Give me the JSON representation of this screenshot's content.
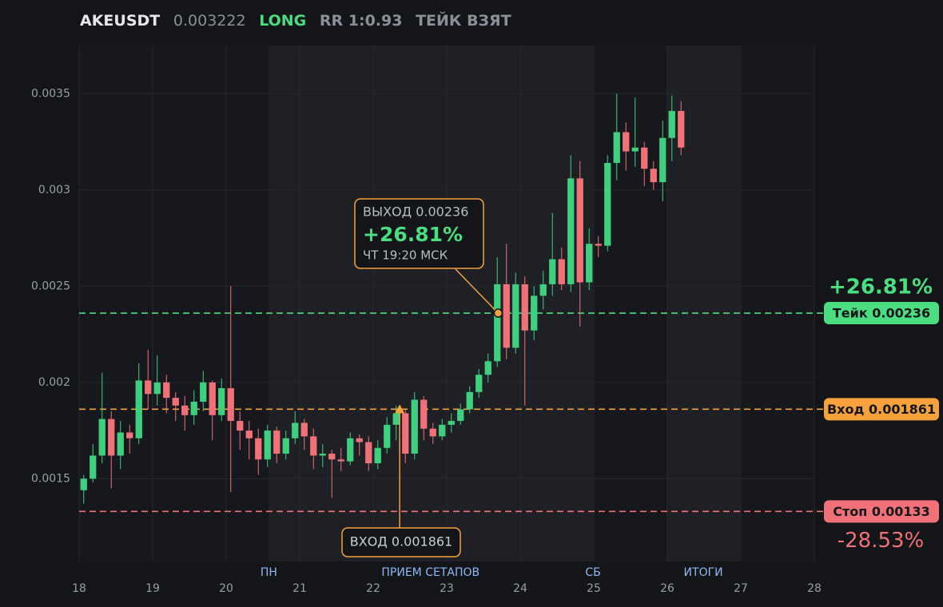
{
  "header": {
    "symbol": "AKEUSDT",
    "price": "0.003222",
    "side": "LONG",
    "rr": "RR 1:0.93",
    "status": "ТЕЙК ВЗЯТ"
  },
  "chart_data": {
    "type": "candlestick",
    "up_color": "#3fd07f",
    "down_color": "#f07178",
    "xlim": [
      18,
      28
    ],
    "xticks": [
      18,
      19,
      20,
      21,
      22,
      23,
      24,
      25,
      26,
      27,
      28
    ],
    "ylim": [
      0.00107,
      0.00375
    ],
    "yticks": [
      0.0015,
      0.002,
      0.0025,
      0.003,
      0.0035
    ],
    "grid": true,
    "x": [
      18.0625,
      18.1875,
      18.3125,
      18.4375,
      18.5625,
      18.6875,
      18.8125,
      18.9375,
      19.0625,
      19.1875,
      19.3125,
      19.4375,
      19.5625,
      19.6875,
      19.8125,
      19.9375,
      20.0625,
      20.1875,
      20.3125,
      20.4375,
      20.5625,
      20.6875,
      20.8125,
      20.9375,
      21.0625,
      21.1875,
      21.3125,
      21.4375,
      21.5625,
      21.6875,
      21.8125,
      21.9375,
      22.0625,
      22.1875,
      22.3125,
      22.4375,
      22.5625,
      22.6875,
      22.8125,
      22.9375,
      23.0625,
      23.1875,
      23.3125,
      23.4375,
      23.5625,
      23.6875,
      23.8125,
      23.9375,
      24.0625,
      24.1875,
      24.3125,
      24.4375,
      24.5625,
      24.6875,
      24.8125,
      24.9375,
      25.0625,
      25.1875,
      25.3125,
      25.4375,
      25.5625,
      25.6875,
      25.8125,
      25.9375,
      26.0625,
      26.1875
    ],
    "open": [
      0.00144,
      0.0015,
      0.00162,
      0.00181,
      0.00162,
      0.00174,
      0.00171,
      0.00201,
      0.00194,
      0.002,
      0.00192,
      0.00188,
      0.00183,
      0.0019,
      0.002,
      0.00183,
      0.00197,
      0.0018,
      0.00175,
      0.00171,
      0.0016,
      0.00175,
      0.00163,
      0.00171,
      0.00179,
      0.00172,
      0.00162,
      0.00163,
      0.0016,
      0.00159,
      0.00171,
      0.00169,
      0.00158,
      0.00166,
      0.00178,
      0.00184,
      0.00163,
      0.00191,
      0.00176,
      0.00172,
      0.00178,
      0.0018,
      0.00186,
      0.00195,
      0.00204,
      0.00211,
      0.00251,
      0.00218,
      0.00251,
      0.00227,
      0.00245,
      0.00251,
      0.00264,
      0.00251,
      0.00306,
      0.00252,
      0.00272,
      0.00271,
      0.00314,
      0.0033,
      0.0032,
      0.00322,
      0.00311,
      0.00304,
      0.00327,
      0.00341
    ],
    "high": [
      0.00152,
      0.00168,
      0.00205,
      0.00185,
      0.0018,
      0.00178,
      0.0021,
      0.00217,
      0.00214,
      0.00204,
      0.00195,
      0.00193,
      0.00196,
      0.00206,
      0.00201,
      0.00202,
      0.0025,
      0.00185,
      0.0018,
      0.00176,
      0.00178,
      0.00177,
      0.00175,
      0.00185,
      0.00181,
      0.00176,
      0.00168,
      0.00165,
      0.00166,
      0.00174,
      0.00173,
      0.00172,
      0.0017,
      0.00182,
      0.00188,
      0.00186,
      0.00195,
      0.00193,
      0.00179,
      0.00181,
      0.00184,
      0.00189,
      0.00198,
      0.00207,
      0.00215,
      0.00265,
      0.00272,
      0.00257,
      0.00255,
      0.0025,
      0.00258,
      0.00288,
      0.0027,
      0.00318,
      0.00315,
      0.0028,
      0.00276,
      0.00318,
      0.0035,
      0.00335,
      0.00348,
      0.00325,
      0.00315,
      0.00336,
      0.00349,
      0.00346
    ],
    "low": [
      0.00137,
      0.00148,
      0.00158,
      0.00145,
      0.00155,
      0.00163,
      0.00168,
      0.00186,
      0.00188,
      0.00184,
      0.0018,
      0.00175,
      0.00178,
      0.00185,
      0.0017,
      0.0018,
      0.00143,
      0.00165,
      0.0016,
      0.00152,
      0.00156,
      0.00158,
      0.0016,
      0.00168,
      0.00165,
      0.00155,
      0.00156,
      0.0014,
      0.00154,
      0.00157,
      0.00162,
      0.00154,
      0.00155,
      0.00163,
      0.0017,
      0.00158,
      0.0016,
      0.0017,
      0.00168,
      0.0017,
      0.00174,
      0.00178,
      0.00184,
      0.00192,
      0.002,
      0.00208,
      0.00212,
      0.00215,
      0.00188,
      0.00222,
      0.00238,
      0.00245,
      0.00248,
      0.00247,
      0.00229,
      0.00248,
      0.00265,
      0.00268,
      0.00305,
      0.0031,
      0.00312,
      0.00302,
      0.003,
      0.00294,
      0.00315,
      0.00318
    ],
    "close": [
      0.0015,
      0.00162,
      0.00181,
      0.00162,
      0.00174,
      0.00171,
      0.00201,
      0.00194,
      0.002,
      0.00192,
      0.00188,
      0.00183,
      0.0019,
      0.002,
      0.00183,
      0.00197,
      0.0018,
      0.00175,
      0.00171,
      0.0016,
      0.00175,
      0.00163,
      0.00171,
      0.00179,
      0.00172,
      0.00162,
      0.00163,
      0.0016,
      0.00159,
      0.00171,
      0.00169,
      0.00158,
      0.00166,
      0.00178,
      0.00184,
      0.00163,
      0.00191,
      0.00176,
      0.00172,
      0.00178,
      0.0018,
      0.00186,
      0.00195,
      0.00204,
      0.00211,
      0.00251,
      0.00218,
      0.00251,
      0.00227,
      0.00245,
      0.00251,
      0.00264,
      0.00251,
      0.00306,
      0.00252,
      0.00272,
      0.00271,
      0.00314,
      0.0033,
      0.0032,
      0.00322,
      0.00311,
      0.00304,
      0.00327,
      0.00341,
      0.00322
    ],
    "shaded": [
      [
        20.58,
        24.99
      ],
      [
        26.0,
        27.0
      ]
    ],
    "sessions": [
      {
        "label": "ПН",
        "x": 20.58
      },
      {
        "label": "ПРИЕМ СЕТАПОВ",
        "x": 22.78
      },
      {
        "label": "СБ",
        "x": 24.99
      },
      {
        "label": "ИТОГИ",
        "x": 26.49
      }
    ],
    "levels": [
      {
        "label": "Тейк 0.00236",
        "value": 0.00236,
        "color": "#4ade80",
        "note": "+26.81%"
      },
      {
        "label": "Вход 0.001861",
        "value": 0.001861,
        "color": "#f5a13c"
      },
      {
        "label": "Стоп 0.00133",
        "value": 0.00133,
        "color": "#f07178",
        "note": "-28.53%"
      }
    ],
    "exit": {
      "title": "ВЫХОД 0.00236",
      "pct": "+26.81%",
      "time": "ЧТ 19:20 МСК",
      "x": 23.7,
      "value": 0.00236
    },
    "entry": {
      "label": "ВХОД 0.001861",
      "x": 22.36,
      "value": 0.001861
    }
  }
}
